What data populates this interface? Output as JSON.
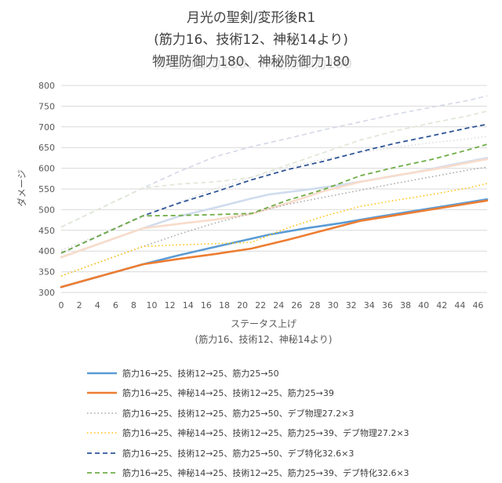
{
  "chart_data": {
    "type": "line",
    "title": "月光の聖剣/変形後R1",
    "subtitle": "(筋力16、技術12、神秘14より)",
    "subtitle2": "物理防御力180、神秘防御力180",
    "xlabel": "ステータス上げ",
    "xlabel2": "(筋力16、技術12、神秘14より)",
    "ylabel": "ダメージ",
    "xlim": [
      0,
      47
    ],
    "ylim": [
      300,
      800
    ],
    "x_ticks": [
      0,
      2,
      4,
      6,
      8,
      10,
      12,
      14,
      16,
      18,
      20,
      22,
      24,
      26,
      28,
      30,
      32,
      34,
      36,
      38,
      40,
      42,
      44,
      46
    ],
    "y_ticks": [
      300,
      350,
      400,
      450,
      500,
      550,
      600,
      650,
      700,
      750,
      800
    ],
    "grid": true,
    "legend_position": "bottom",
    "series": [
      {
        "name": "筋力16→25、技術12→25、筋力25→50",
        "color": "#5b9bd5",
        "dash": "solid",
        "legend": true,
        "x": [
          0,
          9,
          13,
          17,
          21,
          23,
          27,
          31,
          35,
          39,
          43,
          47
        ],
        "y": [
          313,
          368,
          390,
          410,
          430,
          440,
          455,
          468,
          483,
          497,
          511,
          525
        ]
      },
      {
        "name": "筋力16→25、神秘14→25、技術12→25、筋力25→39",
        "color": "#ed7d31",
        "dash": "solid",
        "legend": true,
        "x": [
          0,
          9,
          13,
          17,
          21,
          25,
          29,
          33,
          37,
          41,
          45,
          47
        ],
        "y": [
          313,
          368,
          381,
          393,
          406,
          427,
          450,
          473,
          487,
          501,
          515,
          522
        ]
      },
      {
        "name": "筋力16→25、技術12→25、筋力25→50、デブ物理27.2×3",
        "color": "#a5a5a5",
        "dash": "dot",
        "legend": true,
        "x": [
          0,
          9,
          13,
          17,
          21,
          25,
          29,
          33,
          37,
          41,
          45,
          47
        ],
        "y": [
          340,
          411,
          441,
          468,
          491,
          513,
          530,
          547,
          564,
          580,
          596,
          603
        ]
      },
      {
        "name": "筋力16→25、神秘14→25、技術12→25、筋力25→39、デブ物理27.2×3",
        "color": "#ffc000",
        "dash": "dot",
        "legend": true,
        "x": [
          0,
          9,
          13,
          17,
          21,
          25,
          29,
          33,
          37,
          41,
          45,
          47
        ],
        "y": [
          340,
          411,
          415,
          418,
          421,
          456,
          484,
          508,
          523,
          537,
          553,
          563
        ]
      },
      {
        "name": "筋力16→25、技術12→25、筋力25→50、デブ特化32.6×3",
        "color": "#2f5597",
        "dash": "dash",
        "legend": true,
        "x": [
          0,
          9,
          13,
          17,
          21,
          25,
          29,
          33,
          37,
          41,
          45,
          47
        ],
        "y": [
          395,
          485,
          516,
          543,
          572,
          597,
          617,
          640,
          661,
          679,
          698,
          706
        ]
      },
      {
        "name": "筋力16→25、神秘14→25、技術12→25、筋力25→39、デブ特化32.6×3",
        "color": "#70ad47",
        "dash": "dash",
        "legend": true,
        "x": [
          0,
          9,
          13,
          17,
          21,
          25,
          29,
          33,
          37,
          41,
          45,
          47
        ],
        "y": [
          395,
          485,
          486,
          488,
          491,
          523,
          549,
          582,
          603,
          622,
          645,
          658
        ]
      },
      {
        "name": "",
        "color": "#d0dcee",
        "dash": "solid",
        "legend": false,
        "x": [
          0,
          9,
          13,
          17,
          21,
          23,
          27,
          31,
          35,
          39,
          43,
          47
        ],
        "y": [
          385,
          455,
          484,
          505,
          527,
          537,
          548,
          560,
          575,
          590,
          608,
          625
        ]
      },
      {
        "name": "",
        "color": "#f8dccb",
        "dash": "solid",
        "legend": false,
        "x": [
          0,
          9,
          13,
          17,
          21,
          25,
          29,
          33,
          37,
          41,
          45,
          47
        ],
        "y": [
          385,
          455,
          466,
          476,
          490,
          516,
          545,
          567,
          583,
          597,
          614,
          622
        ]
      },
      {
        "name": "",
        "color": "#dedede",
        "dash": "dot",
        "legend": false,
        "x": [
          0,
          9,
          13,
          17,
          21,
          25,
          29,
          33,
          37,
          41,
          45,
          47
        ],
        "y": [
          402,
          482,
          519,
          551,
          578,
          603,
          622,
          638,
          651,
          662,
          671,
          677
        ]
      },
      {
        "name": "",
        "color": "#d4d8e6",
        "dash": "dash",
        "legend": false,
        "x": [
          0,
          9,
          13,
          17,
          21,
          25,
          29,
          33,
          37,
          41,
          45,
          47
        ],
        "y": [
          458,
          552,
          592,
          628,
          652,
          672,
          693,
          712,
          731,
          748,
          764,
          775
        ]
      },
      {
        "name": "",
        "color": "#dde6d4",
        "dash": "dash",
        "legend": false,
        "x": [
          0,
          9,
          13,
          17,
          21,
          25,
          29,
          33,
          37,
          41,
          45,
          47
        ],
        "y": [
          458,
          552,
          562,
          567,
          578,
          608,
          638,
          668,
          691,
          710,
          727,
          738
        ]
      }
    ]
  }
}
